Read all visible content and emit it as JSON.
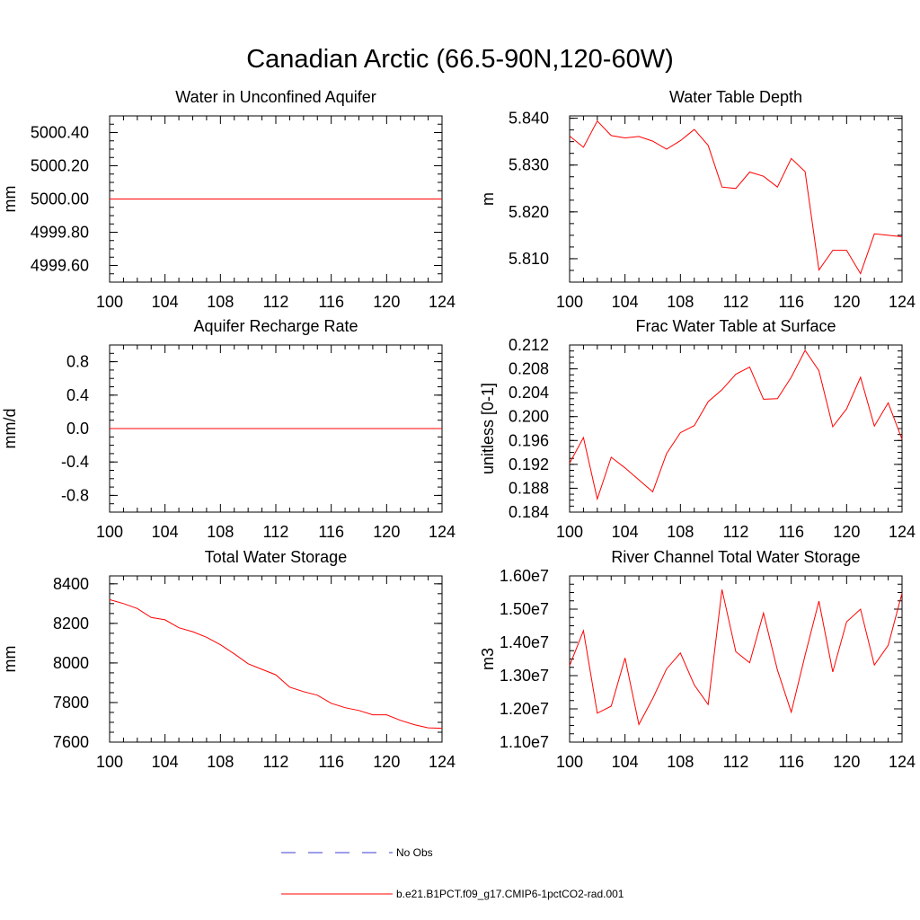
{
  "title": "Canadian Arctic (66.5-90N,120-60W)",
  "legend": {
    "obs_label": "No Obs",
    "model_label": "b.e21.B1PCT.f09_g17.CMIP6-1pctCO2-rad.001",
    "obs_color": "#3b3bd4",
    "model_color": "#ff0000"
  },
  "chart_data": [
    {
      "type": "line",
      "title": "Water in Unconfined Aquifer",
      "ylabel": "mm",
      "x": [
        100,
        101,
        102,
        103,
        104,
        105,
        106,
        107,
        108,
        109,
        110,
        111,
        112,
        113,
        114,
        115,
        116,
        117,
        118,
        119,
        120,
        121,
        122,
        123,
        124
      ],
      "xlim": [
        100,
        124
      ],
      "xticks": [
        100,
        104,
        108,
        112,
        116,
        120,
        124
      ],
      "ylim": [
        4999.5,
        5000.5
      ],
      "yticks": [
        4999.6,
        4999.8,
        5000.0,
        5000.2,
        5000.4
      ],
      "ytick_labels": [
        "4999.60",
        "4999.80",
        "5000.00",
        "5000.20",
        "5000.40"
      ],
      "series": [
        {
          "values": [
            5000,
            5000,
            5000,
            5000,
            5000,
            5000,
            5000,
            5000,
            5000,
            5000,
            5000,
            5000,
            5000,
            5000,
            5000,
            5000,
            5000,
            5000,
            5000,
            5000,
            5000,
            5000,
            5000,
            5000,
            5000
          ]
        }
      ]
    },
    {
      "type": "line",
      "title": "Water Table Depth",
      "ylabel": "m",
      "x": [
        100,
        101,
        102,
        103,
        104,
        105,
        106,
        107,
        108,
        109,
        110,
        111,
        112,
        113,
        114,
        115,
        116,
        117,
        118,
        119,
        120,
        121,
        122,
        123,
        124
      ],
      "xlim": [
        100,
        124
      ],
      "xticks": [
        100,
        104,
        108,
        112,
        116,
        120,
        124
      ],
      "ylim": [
        5.805,
        5.8405
      ],
      "yticks": [
        5.81,
        5.82,
        5.83,
        5.84
      ],
      "ytick_labels": [
        "5.810",
        "5.820",
        "5.830",
        "5.840"
      ],
      "series": [
        {
          "values": [
            5.8362,
            5.8338,
            5.8394,
            5.8363,
            5.8358,
            5.8361,
            5.8351,
            5.8334,
            5.8352,
            5.8376,
            5.8342,
            5.8253,
            5.825,
            5.8285,
            5.8276,
            5.8253,
            5.8314,
            5.8286,
            5.8076,
            5.8118,
            5.8118,
            5.8068,
            5.8153,
            5.815,
            5.8147
          ]
        }
      ]
    },
    {
      "type": "line",
      "title": "Aquifer Recharge Rate",
      "ylabel": "mm/d",
      "x": [
        100,
        101,
        102,
        103,
        104,
        105,
        106,
        107,
        108,
        109,
        110,
        111,
        112,
        113,
        114,
        115,
        116,
        117,
        118,
        119,
        120,
        121,
        122,
        123,
        124
      ],
      "xlim": [
        100,
        124
      ],
      "xticks": [
        100,
        104,
        108,
        112,
        116,
        120,
        124
      ],
      "ylim": [
        -1.0,
        1.0
      ],
      "yticks": [
        -0.8,
        -0.4,
        0.0,
        0.4,
        0.8
      ],
      "ytick_labels": [
        "-0.8",
        "-0.4",
        "0.0",
        "0.4",
        "0.8"
      ],
      "series": [
        {
          "values": [
            0,
            0,
            0,
            0,
            0,
            0,
            0,
            0,
            0,
            0,
            0,
            0,
            0,
            0,
            0,
            0,
            0,
            0,
            0,
            0,
            0,
            0,
            0,
            0,
            0
          ]
        }
      ]
    },
    {
      "type": "line",
      "title": "Frac Water Table at Surface",
      "ylabel": "unitless [0-1]",
      "x": [
        100,
        101,
        102,
        103,
        104,
        105,
        106,
        107,
        108,
        109,
        110,
        111,
        112,
        113,
        114,
        115,
        116,
        117,
        118,
        119,
        120,
        121,
        122,
        123,
        124
      ],
      "xlim": [
        100,
        124
      ],
      "xticks": [
        100,
        104,
        108,
        112,
        116,
        120,
        124
      ],
      "ylim": [
        0.184,
        0.212
      ],
      "yticks": [
        0.184,
        0.188,
        0.192,
        0.196,
        0.2,
        0.204,
        0.208,
        0.212
      ],
      "ytick_labels": [
        "0.184",
        "0.188",
        "0.192",
        "0.196",
        "0.200",
        "0.204",
        "0.208",
        "0.212"
      ],
      "series": [
        {
          "values": [
            0.1922,
            0.1965,
            0.1862,
            0.1932,
            0.1914,
            0.1894,
            0.1874,
            0.1938,
            0.1973,
            0.1985,
            0.2025,
            0.2045,
            0.2071,
            0.2083,
            0.2029,
            0.203,
            0.2066,
            0.2111,
            0.2077,
            0.1983,
            0.2013,
            0.2066,
            0.1984,
            0.2023,
            0.1962
          ]
        }
      ]
    },
    {
      "type": "line",
      "title": "Total Water Storage",
      "ylabel": "mm",
      "x": [
        100,
        101,
        102,
        103,
        104,
        105,
        106,
        107,
        108,
        109,
        110,
        111,
        112,
        113,
        114,
        115,
        116,
        117,
        118,
        119,
        120,
        121,
        122,
        123,
        124
      ],
      "xlim": [
        100,
        124
      ],
      "xticks": [
        100,
        104,
        108,
        112,
        116,
        120,
        124
      ],
      "ylim": [
        7600,
        8440
      ],
      "yticks": [
        7600,
        7800,
        8000,
        8200,
        8400
      ],
      "ytick_labels": [
        "7600",
        "7800",
        "8000",
        "8200",
        "8400"
      ],
      "series": [
        {
          "values": [
            8320,
            8300,
            8275,
            8230,
            8218,
            8178,
            8158,
            8130,
            8092,
            8046,
            7996,
            7968,
            7940,
            7878,
            7855,
            7837,
            7796,
            7774,
            7760,
            7738,
            7738,
            7710,
            7688,
            7672,
            7670
          ]
        }
      ]
    },
    {
      "type": "line",
      "title": "River Channel Total Water Storage",
      "ylabel": "m3",
      "x": [
        100,
        101,
        102,
        103,
        104,
        105,
        106,
        107,
        108,
        109,
        110,
        111,
        112,
        113,
        114,
        115,
        116,
        117,
        118,
        119,
        120,
        121,
        122,
        123,
        124
      ],
      "xlim": [
        100,
        124
      ],
      "xticks": [
        100,
        104,
        108,
        112,
        116,
        120,
        124
      ],
      "ylim": [
        11000000,
        16000000
      ],
      "yticks": [
        11000000,
        12000000,
        13000000,
        14000000,
        15000000,
        16000000
      ],
      "ytick_labels": [
        "1.10e7",
        "1.20e7",
        "1.30e7",
        "1.40e7",
        "1.50e7",
        "1.60e7"
      ],
      "series": [
        {
          "values": [
            13300000,
            14350000,
            11870000,
            12080000,
            13530000,
            11530000,
            12310000,
            13200000,
            13680000,
            12720000,
            12130000,
            15590000,
            13720000,
            13390000,
            14880000,
            13170000,
            11900000,
            13610000,
            15240000,
            13110000,
            14620000,
            15000000,
            13320000,
            13910000,
            15480000
          ]
        }
      ]
    }
  ]
}
